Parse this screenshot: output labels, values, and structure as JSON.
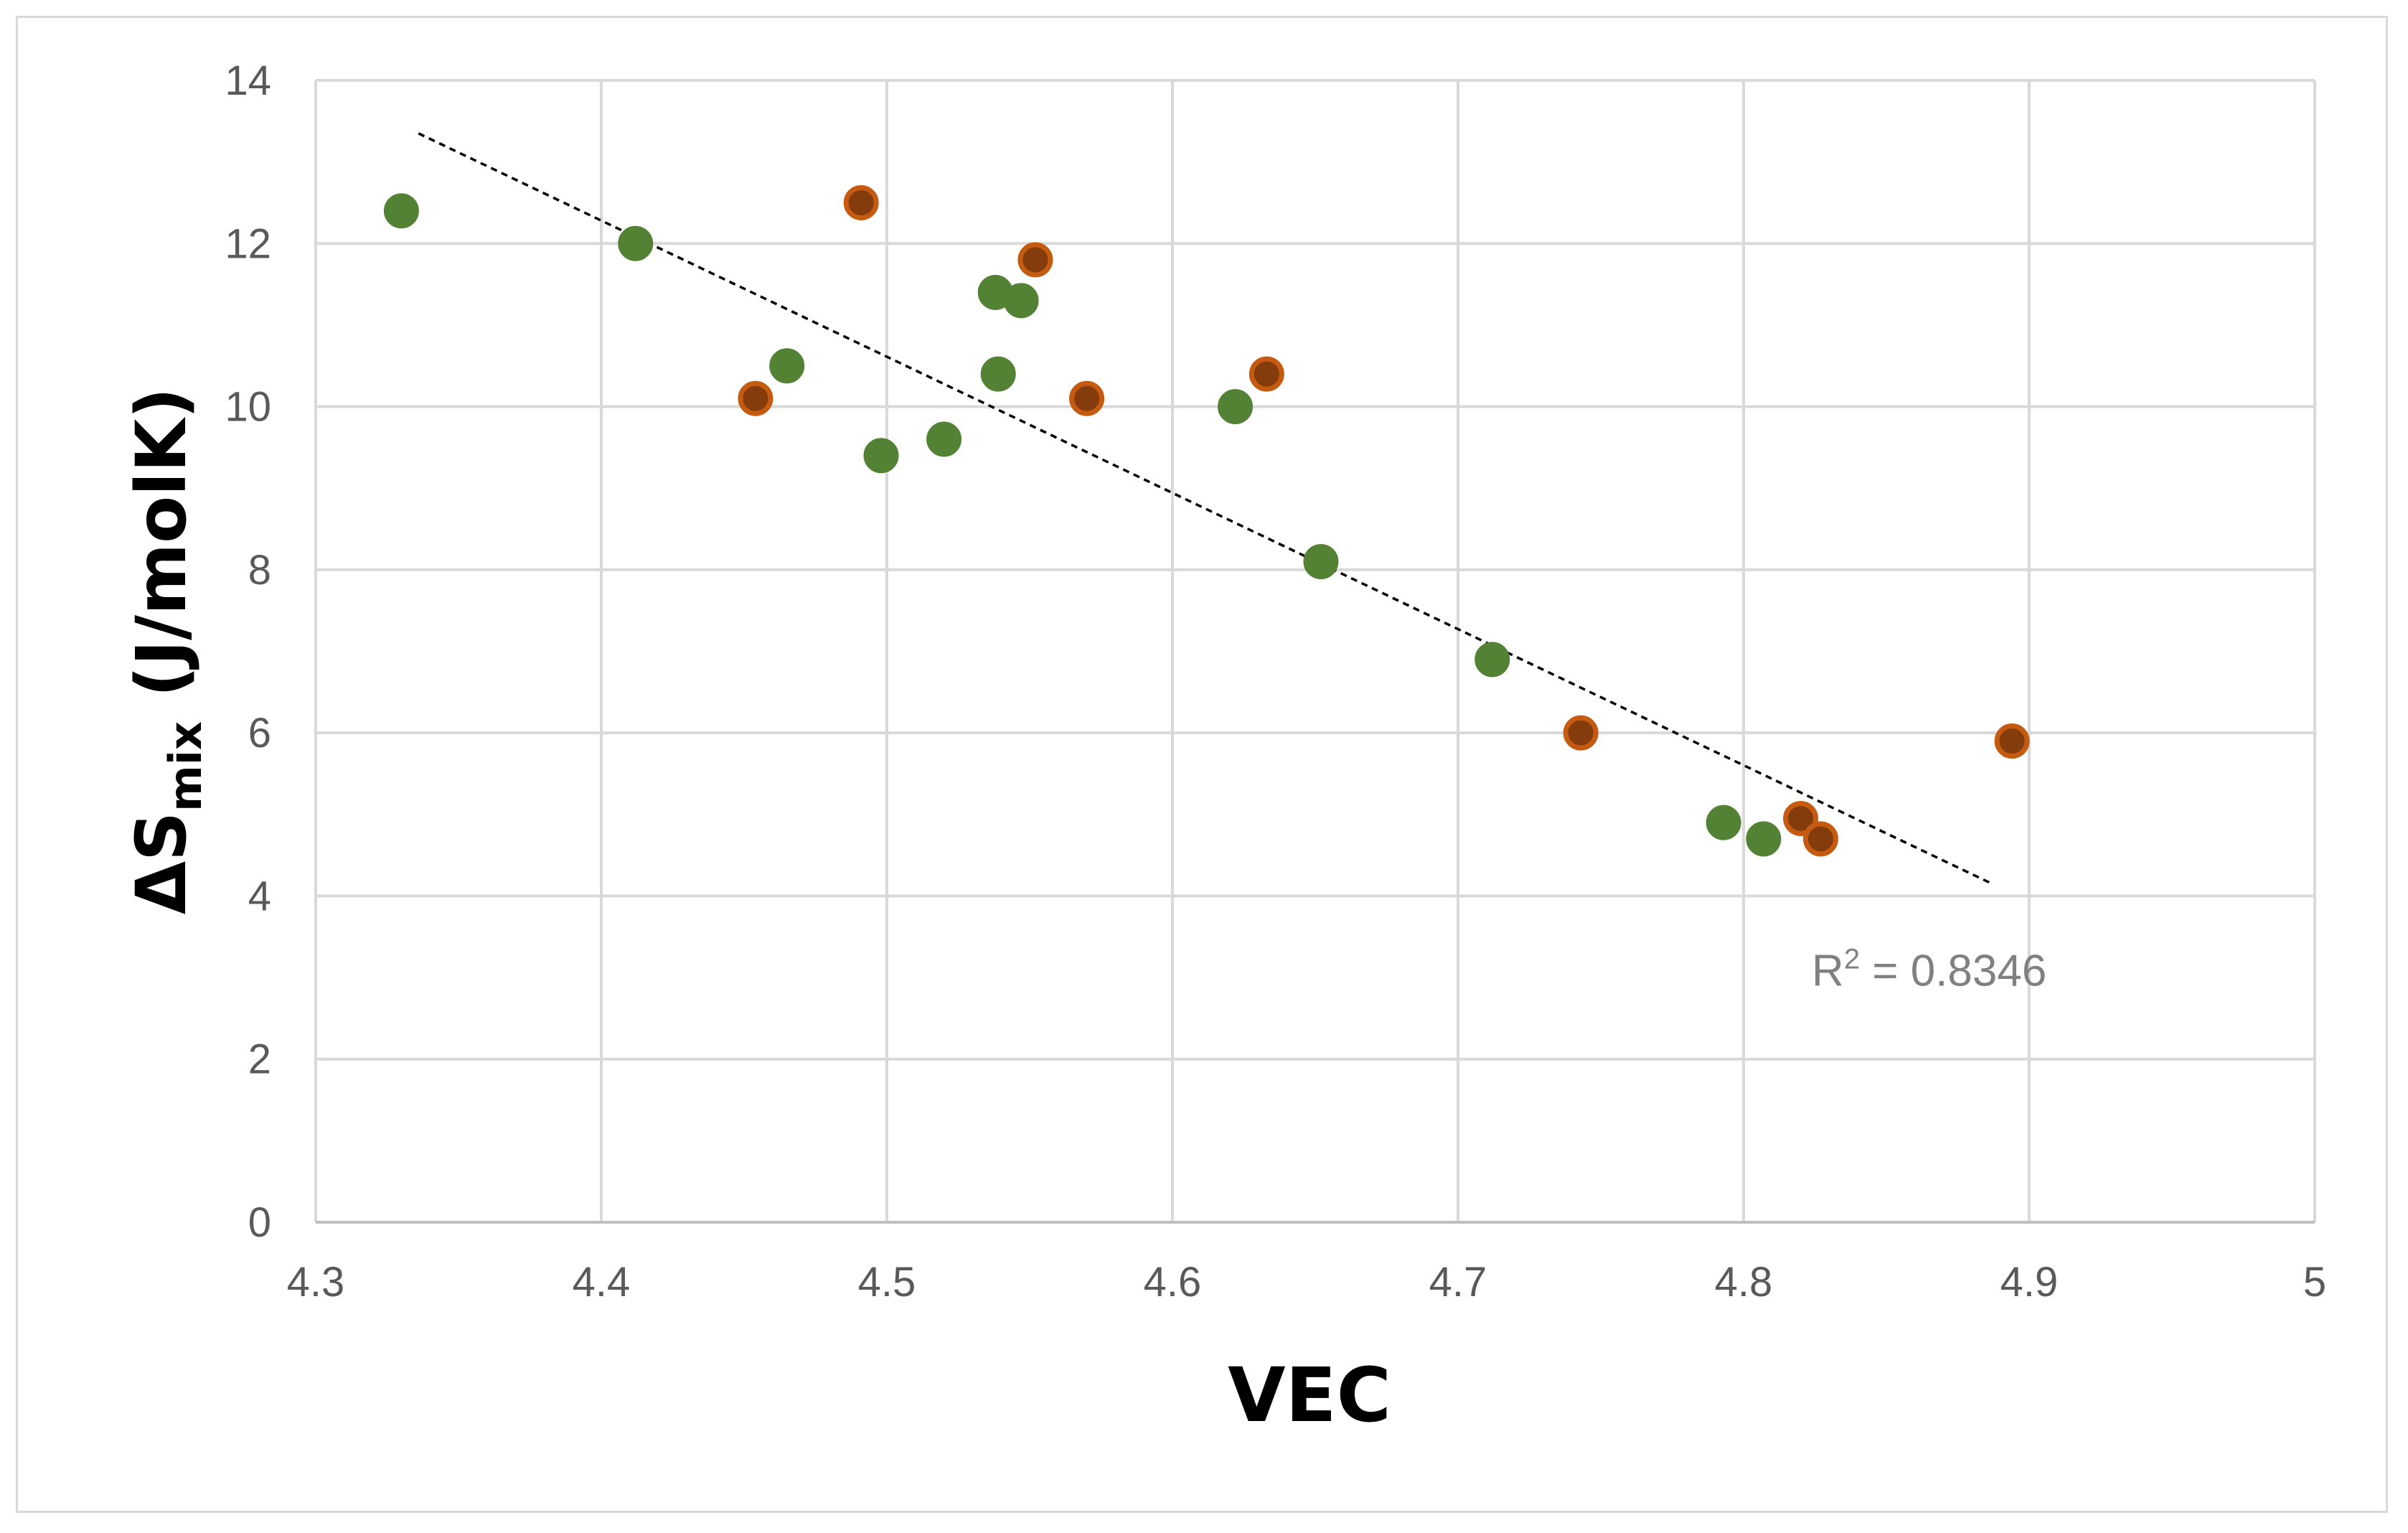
{
  "chart_data": {
    "type": "scatter",
    "title": "",
    "xlabel": "VEC",
    "ylabel": {
      "prefix": "ΔS",
      "subscript": "mix",
      "suffix": " (J/molK)"
    },
    "xlim": [
      4.3,
      5
    ],
    "ylim": [
      0,
      14
    ],
    "xticks": [
      4.3,
      4.4,
      4.5,
      4.6,
      4.7,
      4.8,
      4.9,
      5
    ],
    "xtick_labels": [
      "4.3",
      "4.4",
      "4.5",
      "4.6",
      "4.7",
      "4.8",
      "4.9",
      "5"
    ],
    "yticks": [
      0,
      2,
      4,
      6,
      8,
      10,
      12,
      14
    ],
    "ytick_labels": [
      "0",
      "2",
      "4",
      "6",
      "8",
      "10",
      "12",
      "14"
    ],
    "grid": true,
    "series": [
      {
        "name": "green",
        "color": "#548235",
        "edge": "#548235",
        "points": [
          [
            4.33,
            12.4
          ],
          [
            4.412,
            12.0
          ],
          [
            4.465,
            10.5
          ],
          [
            4.498,
            9.4
          ],
          [
            4.52,
            9.6
          ],
          [
            4.538,
            11.4
          ],
          [
            4.539,
            10.4
          ],
          [
            4.547,
            11.3
          ],
          [
            4.622,
            10.0
          ],
          [
            4.652,
            8.1
          ],
          [
            4.712,
            6.9
          ],
          [
            4.793,
            4.9
          ],
          [
            4.807,
            4.7
          ]
        ]
      },
      {
        "name": "orange",
        "color": "#843c0c",
        "edge": "#c55a11",
        "points": [
          [
            4.454,
            10.1
          ],
          [
            4.491,
            12.5
          ],
          [
            4.552,
            11.8
          ],
          [
            4.57,
            10.1
          ],
          [
            4.633,
            10.4
          ],
          [
            4.743,
            6.0
          ],
          [
            4.82,
            4.95
          ],
          [
            4.827,
            4.7
          ],
          [
            4.894,
            5.9
          ]
        ]
      }
    ],
    "trendline": {
      "type": "linear",
      "color": "#000000",
      "x": [
        4.336,
        4.887
      ],
      "y": [
        13.35,
        4.15
      ],
      "label": {
        "text": "R",
        "sup": "2",
        "rest": " = 0.8346",
        "x": 4.865,
        "y": 2.9
      }
    }
  }
}
